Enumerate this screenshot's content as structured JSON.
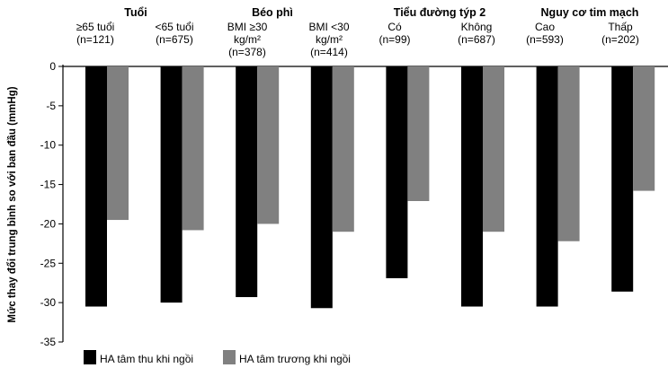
{
  "chart_data": {
    "type": "bar",
    "ylabel": "Mức thay đổi trung bình so với ban đầu (mmHg)",
    "ylim": [
      -35,
      0
    ],
    "yticks": [
      0,
      -5,
      -10,
      -15,
      -20,
      -25,
      -30,
      -35
    ],
    "groups": [
      {
        "title": "Tuổi",
        "categories": [
          [
            "≥65 tuổi",
            "(n=121)"
          ],
          [
            "<65 tuổi",
            "(n=675)"
          ]
        ]
      },
      {
        "title": "Béo phì",
        "categories": [
          [
            "BMI ≥30",
            "kg/m²",
            "(n=378)"
          ],
          [
            "BMI <30",
            "kg/m²",
            "(n=414)"
          ]
        ]
      },
      {
        "title": "Tiểu đường týp 2",
        "categories": [
          [
            "Có",
            "(n=99)"
          ],
          [
            "Không",
            "(n=687)"
          ]
        ]
      },
      {
        "title": "Nguy cơ tim mạch",
        "categories": [
          [
            "Cao",
            "(n=593)"
          ],
          [
            "Thấp",
            "(n=202)"
          ]
        ]
      }
    ],
    "series": [
      {
        "name": "HA tâm thu khi ngồi",
        "color": "#000000",
        "values": [
          -30.5,
          -30.0,
          -29.3,
          -30.7,
          -26.9,
          -30.5,
          -30.5,
          -28.6
        ]
      },
      {
        "name": "HA tâm trương khi ngồi",
        "color": "#808080",
        "values": [
          -19.5,
          -20.8,
          -20.0,
          -21.0,
          -17.1,
          -21.0,
          -22.2,
          -15.8
        ]
      }
    ],
    "legend_position": "bottom-left",
    "grid": false
  }
}
